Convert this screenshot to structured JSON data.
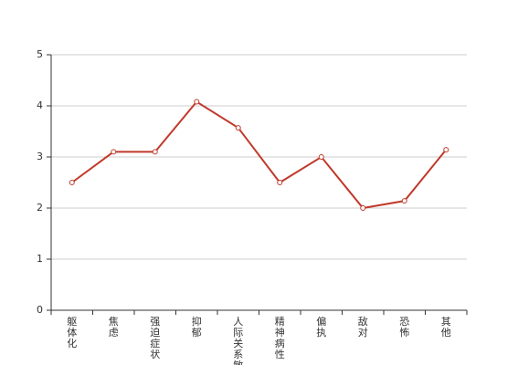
{
  "chart_data": {
    "type": "line",
    "categories": [
      "躯体化",
      "焦虑",
      "强迫症状",
      "抑郁",
      "人际关系敏感",
      "精神病性",
      "偏执",
      "敌对",
      "恐怖",
      "其他"
    ],
    "series": [
      {
        "color": "#c0392b",
        "values": [
          2.5,
          3.1,
          3.1,
          4.08,
          3.57,
          2.5,
          3.0,
          2.0,
          2.14,
          3.14
        ]
      }
    ],
    "ylim": [
      0,
      5
    ],
    "yticks": [
      0,
      1,
      2,
      3,
      4,
      5
    ],
    "grid": true
  }
}
